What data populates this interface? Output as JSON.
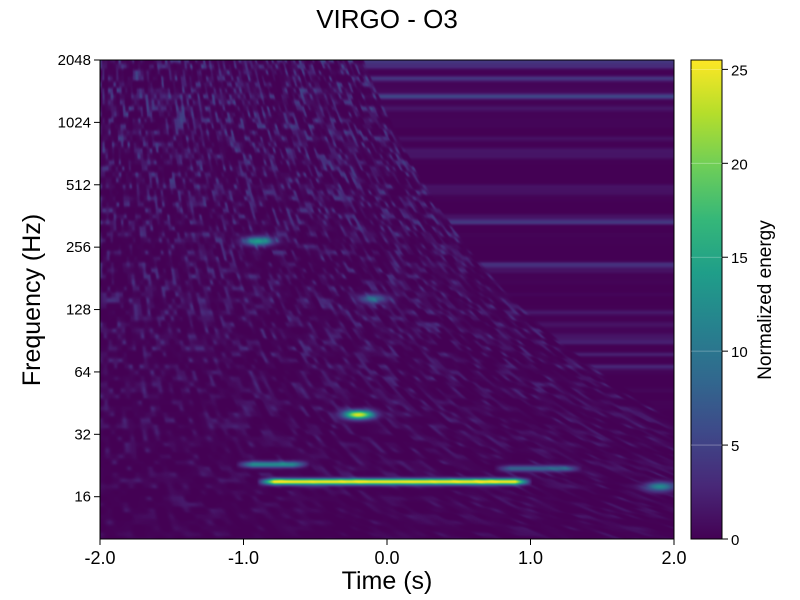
{
  "chart_data": {
    "type": "heatmap",
    "title": "VIRGO - O3",
    "xlabel": "Time (s)",
    "ylabel": "Frequency (Hz)",
    "xlim": [
      -2.0,
      2.0
    ],
    "x_ticks": [
      -2.0,
      -1.0,
      0.0,
      1.0,
      2.0
    ],
    "x_tick_labels": [
      "-2.0",
      "-1.0",
      "0.0",
      "1.0",
      "2.0"
    ],
    "y_scale": "log2",
    "ylim": [
      10,
      2048
    ],
    "y_ticks": [
      16,
      32,
      64,
      128,
      256,
      512,
      1024,
      2048
    ],
    "y_tick_labels": [
      "16",
      "32",
      "64",
      "128",
      "256",
      "512",
      "1024",
      "2048"
    ],
    "colorbar": {
      "label": "Normalized energy",
      "range": [
        0,
        25.5
      ],
      "ticks": [
        0,
        5,
        10,
        15,
        20,
        25
      ],
      "tick_labels": [
        "0",
        "5",
        "10",
        "15",
        "20",
        "25"
      ],
      "colormap": "viridis"
    },
    "grid": false,
    "features": [
      {
        "kind": "band",
        "t_start": -0.85,
        "t_end": 0.95,
        "freq_hz": 19,
        "energy": 25
      },
      {
        "kind": "blob",
        "t_center": -0.2,
        "freq_hz": 40,
        "energy": 24
      },
      {
        "kind": "band",
        "t_start": -1.0,
        "t_end": -0.6,
        "freq_hz": 23,
        "energy": 12
      },
      {
        "kind": "band",
        "t_start": 0.8,
        "t_end": 1.3,
        "freq_hz": 22,
        "energy": 8
      },
      {
        "kind": "blob",
        "t_center": 1.9,
        "freq_hz": 18,
        "energy": 12
      },
      {
        "kind": "blob",
        "t_center": -0.9,
        "freq_hz": 275,
        "energy": 14
      },
      {
        "kind": "blob",
        "t_center": -0.1,
        "freq_hz": 145,
        "energy": 8
      }
    ],
    "colors": {
      "viridis": [
        "#440154",
        "#482878",
        "#3e4989",
        "#31688e",
        "#26828e",
        "#1f9e89",
        "#35b779",
        "#6ece58",
        "#b5de2b",
        "#fde725"
      ]
    }
  }
}
